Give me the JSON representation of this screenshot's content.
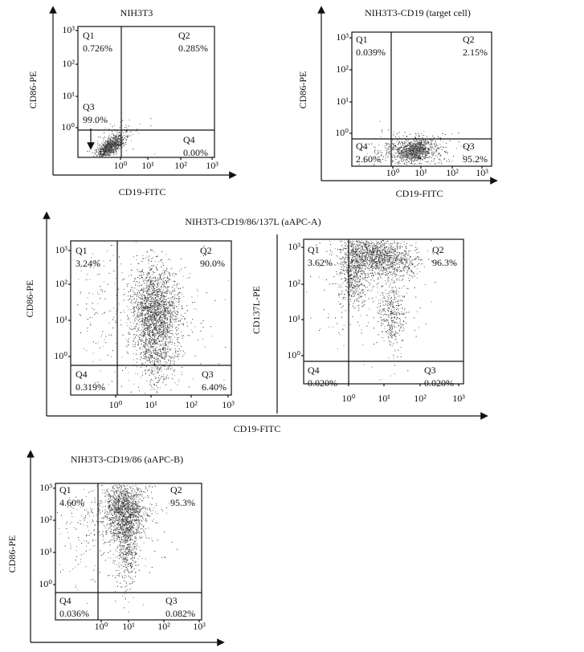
{
  "log_ticks": [
    "10⁰",
    "10¹",
    "10²",
    "10³"
  ],
  "panels": [
    {
      "title": "NIH3T3",
      "y_label": "CD86-PE",
      "x_label": "CD19-FITC",
      "quadrants": [
        {
          "name": "Q1",
          "percent": "0.726%"
        },
        {
          "name": "Q2",
          "percent": "0.285%"
        },
        {
          "name": "Q3",
          "percent": "99.0%"
        },
        {
          "name": "Q4",
          "percent": "0.00%"
        }
      ]
    },
    {
      "title": "NIH3T3-CD19 (target cell)",
      "y_label": "CD86-PE",
      "x_label": "CD19-FITC",
      "quadrants": [
        {
          "name": "Q1",
          "percent": "0.039%"
        },
        {
          "name": "Q2",
          "percent": "2.15%"
        },
        {
          "name": "Q4",
          "percent": "2.60%"
        },
        {
          "name": "Q3",
          "percent": "95.2%"
        }
      ]
    },
    {
      "title": "NIH3T3-CD19/86/137L (aAPC-A)",
      "x_label": "CD19-FITC",
      "plots": [
        {
          "y_label": "CD86-PE",
          "quadrants": [
            {
              "name": "Q1",
              "percent": "3.24%"
            },
            {
              "name": "Q2",
              "percent": "90.0%"
            },
            {
              "name": "Q4",
              "percent": "0.319%"
            },
            {
              "name": "Q3",
              "percent": "6.40%"
            }
          ]
        },
        {
          "y_label": "CD137L-PE",
          "quadrants": [
            {
              "name": "Q1",
              "percent": "3.62%"
            },
            {
              "name": "Q2",
              "percent": "96.3%"
            },
            {
              "name": "Q4",
              "percent": "0.020%"
            },
            {
              "name": "Q3",
              "percent": "0.020%"
            }
          ]
        }
      ]
    },
    {
      "title": "NIH3T3-CD19/86 (aAPC-B)",
      "y_label": "CD86-PE",
      "quadrants": [
        {
          "name": "Q1",
          "percent": "4.60%"
        },
        {
          "name": "Q2",
          "percent": "95.3%"
        },
        {
          "name": "Q4",
          "percent": "0.036%"
        },
        {
          "name": "Q3",
          "percent": "0.082%"
        }
      ]
    }
  ]
}
